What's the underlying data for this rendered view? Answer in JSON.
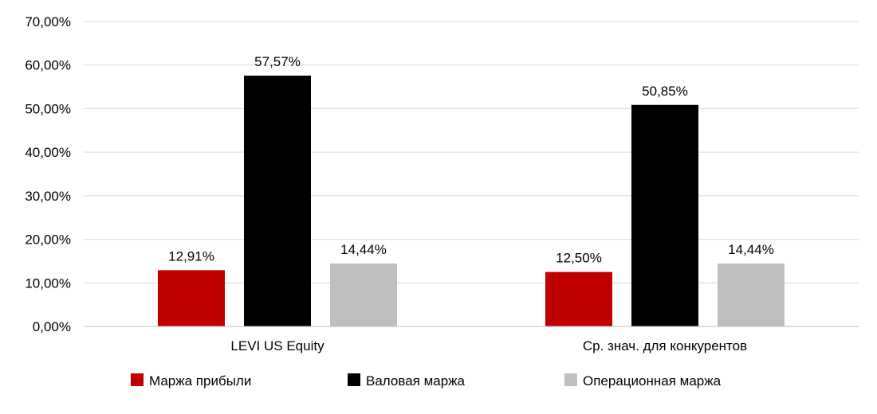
{
  "chart_data": {
    "type": "bar",
    "categories": [
      "LEVI US Equity",
      "Ср. знач. для конкурентов"
    ],
    "series": [
      {
        "name": "Маржа прибыли",
        "values": [
          12.91,
          12.5
        ],
        "color": "#c00000",
        "labels": [
          "12,91%",
          "12,50%"
        ]
      },
      {
        "name": "Валовая маржа",
        "values": [
          57.57,
          50.85
        ],
        "color": "#000000",
        "labels": [
          "57,57%",
          "50,85%"
        ]
      },
      {
        "name": "Операционная маржа",
        "values": [
          14.44,
          14.44
        ],
        "color": "#bfbfbf",
        "labels": [
          "14,44%",
          "14,44%"
        ]
      }
    ],
    "ylim": [
      0,
      70
    ],
    "yticks": [
      "0,00%",
      "10,00%",
      "20,00%",
      "30,00%",
      "40,00%",
      "50,00%",
      "60,00%",
      "70,00%"
    ],
    "grid": true,
    "legend_position": "bottom",
    "title": "",
    "xlabel": "",
    "ylabel": ""
  }
}
